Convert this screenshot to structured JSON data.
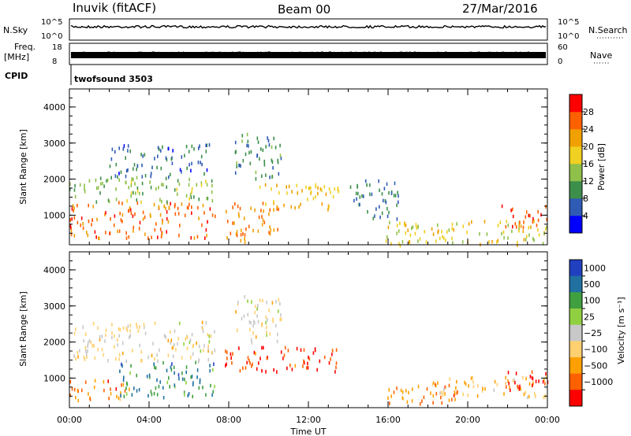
{
  "header": {
    "station": "Inuvik (fitACF)",
    "beam": "Beam 00",
    "date": "27/Mar/2016"
  },
  "noise_panel": {
    "left_label": "N.Sky",
    "right_label": "N.Search",
    "left_ticks": [
      "10^5",
      "10^0"
    ],
    "right_ticks": [
      "10^5",
      "10^0"
    ]
  },
  "freq_panel": {
    "left_label_1": "Freq.",
    "left_label_2": "[MHz]",
    "right_label": "Nave",
    "left_ticks": [
      "18",
      "8"
    ],
    "right_ticks": [
      "60",
      "0"
    ]
  },
  "cpid": {
    "label": "CPID",
    "program": "twofsound 3503"
  },
  "colors": {
    "power": [
      "#0000ff",
      "#2f5bb5",
      "#3c8f4a",
      "#8fc04a",
      "#f0d020",
      "#f0a000",
      "#ff6000",
      "#ff0000"
    ],
    "velocity": [
      "#ff0000",
      "#ff6000",
      "#ffa000",
      "#ffd070",
      "#c8c8c8",
      "#90d040",
      "#40a040",
      "#2070a0",
      "#2040c0"
    ]
  },
  "chart_data": [
    {
      "type": "heatmap",
      "title": "",
      "xlabel": "",
      "ylabel": "Slant Range [km]",
      "xlim": [
        "00:00",
        "24:00"
      ],
      "ylim": [
        180,
        4500
      ],
      "yticks": [
        "1000",
        "2000",
        "3000",
        "4000"
      ],
      "colorbar": {
        "label": "Power [dB]",
        "range": [
          0,
          32
        ],
        "ticks": [
          "4",
          "8",
          "12",
          "16",
          "20",
          "24",
          "28"
        ]
      },
      "scatter_regions": [
        {
          "t0": 0.0,
          "t1": 7.3,
          "r0": 400,
          "r1": 1400,
          "level": 26
        },
        {
          "t0": 0.0,
          "t1": 7.3,
          "r0": 1400,
          "r1": 2100,
          "level": 13
        },
        {
          "t0": 2.0,
          "t1": 7.0,
          "r0": 2100,
          "r1": 3000,
          "level": 7
        },
        {
          "t0": 7.8,
          "t1": 10.5,
          "r0": 300,
          "r1": 1400,
          "level": 24
        },
        {
          "t0": 9.5,
          "t1": 13.5,
          "r0": 1200,
          "r1": 1900,
          "level": 20
        },
        {
          "t0": 8.3,
          "t1": 10.7,
          "r0": 2000,
          "r1": 3300,
          "level": 9
        },
        {
          "t0": 15.8,
          "t1": 24.0,
          "r0": 200,
          "r1": 900,
          "level": 18
        },
        {
          "t0": 21.5,
          "t1": 24.0,
          "r0": 700,
          "r1": 1300,
          "level": 27
        },
        {
          "t0": 14.0,
          "t1": 16.5,
          "r0": 900,
          "r1": 2000,
          "level": 8
        }
      ]
    },
    {
      "type": "heatmap",
      "title": "",
      "xlabel": "Time UT",
      "ylabel": "Slant Range [km]",
      "xlim": [
        "00:00",
        "24:00"
      ],
      "ylim": [
        180,
        4500
      ],
      "xticks": [
        "00:00",
        "04:00",
        "08:00",
        "12:00",
        "16:00",
        "20:00",
        "00:00"
      ],
      "yticks": [
        "1000",
        "2000",
        "3000",
        "4000"
      ],
      "colorbar": {
        "label": "Velocity [m s⁻¹]",
        "ticks": [
          "1000",
          "500",
          "100",
          "25",
          "−25",
          "−100",
          "−500",
          "−1000"
        ]
      },
      "scatter_regions": [
        {
          "t0": 0.0,
          "t1": 3.0,
          "r0": 400,
          "r1": 1000,
          "level": 2
        },
        {
          "t0": 2.5,
          "t1": 7.3,
          "r0": 500,
          "r1": 1500,
          "level": 7
        },
        {
          "t0": 0.0,
          "t1": 7.3,
          "r0": 1500,
          "r1": 2600,
          "level": 4
        },
        {
          "t0": 7.8,
          "t1": 13.5,
          "r0": 1200,
          "r1": 1900,
          "level": 1
        },
        {
          "t0": 8.3,
          "t1": 10.7,
          "r0": 2000,
          "r1": 3300,
          "level": 4
        },
        {
          "t0": 15.8,
          "t1": 19.5,
          "r0": 300,
          "r1": 900,
          "level": 2
        },
        {
          "t0": 18.0,
          "t1": 24.0,
          "r0": 500,
          "r1": 1100,
          "level": 3
        },
        {
          "t0": 22.0,
          "t1": 24.0,
          "r0": 700,
          "r1": 1300,
          "level": 0
        }
      ]
    }
  ],
  "footer": {
    "xlabel": "Time UT"
  }
}
